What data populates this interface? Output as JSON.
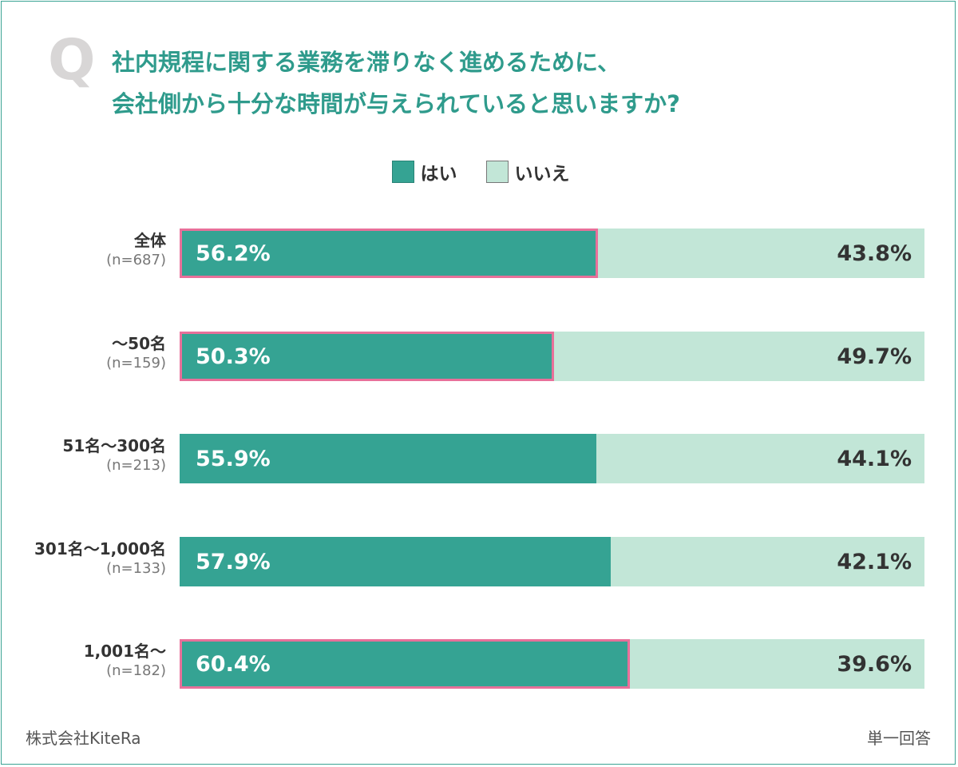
{
  "header": {
    "q_mark": "Q",
    "title_line1": "社内規程に関する業務を滞りなく進めるために、",
    "title_line2": "会社側から十分な時間が与えられていると思いますか?"
  },
  "footer": {
    "source": "株式会社KiteRa",
    "answer_type": "単一回答"
  },
  "colors": {
    "yes": "#35a393",
    "no": "#c2e6d7",
    "highlight": "#e8709a",
    "title": "#2f9b8c"
  },
  "chart_data": {
    "type": "bar",
    "orientation": "horizontal",
    "stacked": true,
    "percent_stacked": true,
    "xlim": [
      0,
      100
    ],
    "legend": {
      "placement": "top-center",
      "entries": [
        "はい",
        "いいえ"
      ]
    },
    "series": [
      {
        "name": "はい",
        "color": "#35a393",
        "values": [
          56.2,
          50.3,
          55.9,
          57.9,
          60.4
        ]
      },
      {
        "name": "いいえ",
        "color": "#c2e6d7",
        "values": [
          43.8,
          49.7,
          44.1,
          42.1,
          39.6
        ]
      }
    ],
    "categories": [
      "全体",
      "〜50名",
      "51名〜300名",
      "301名〜1,000名",
      "1,001名〜"
    ],
    "sample_sizes": [
      "(n=687)",
      "(n=159)",
      "(n=213)",
      "(n=133)",
      "(n=182)"
    ],
    "yes_labels": [
      "56.2%",
      "50.3%",
      "55.9%",
      "57.9%",
      "60.4%"
    ],
    "no_labels": [
      "43.8%",
      "49.7%",
      "44.1%",
      "42.1%",
      "39.6%"
    ],
    "highlighted": [
      true,
      true,
      false,
      false,
      true
    ]
  }
}
